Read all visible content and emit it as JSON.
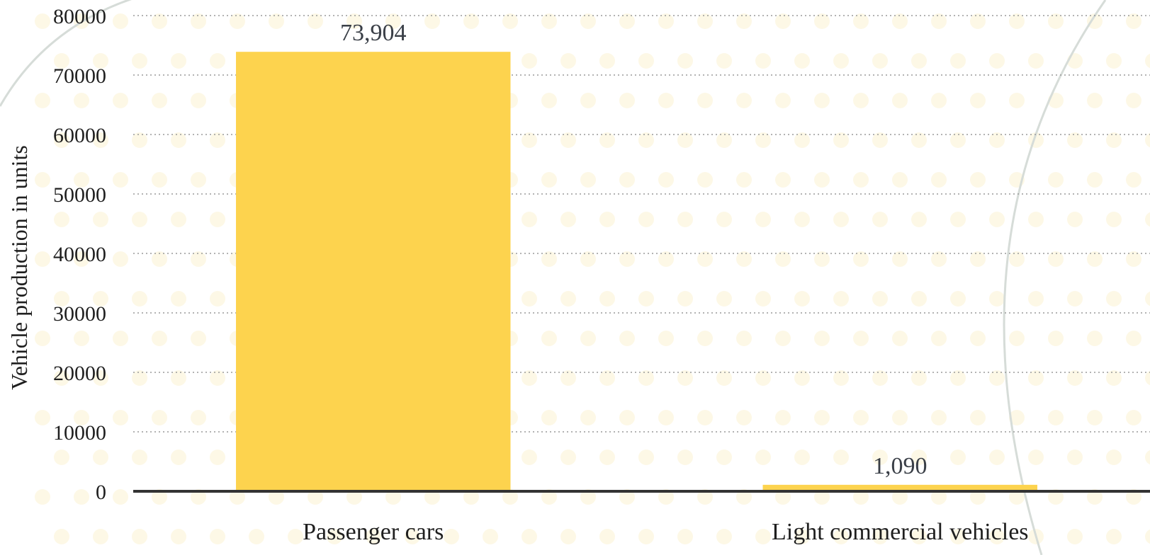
{
  "chart_data": {
    "type": "bar",
    "categories": [
      "Passenger cars",
      "Light commercial vehicles"
    ],
    "values": [
      73904,
      1090
    ],
    "value_labels": [
      "73,904",
      "1,090"
    ],
    "ylabel": "Vehicle production in units",
    "xlabel": "",
    "ylim": [
      0,
      80000
    ],
    "yticks": [
      0,
      10000,
      20000,
      30000,
      40000,
      50000,
      60000,
      70000,
      80000
    ],
    "grid": true,
    "grid_style": "dotted",
    "legend": "none"
  },
  "colors": {
    "bar": "#fdd34e",
    "axis": "#333333",
    "grid": "#9a9a9a",
    "background_dots": "#fbf3d2",
    "background_arcs": "#d6dcd8"
  }
}
